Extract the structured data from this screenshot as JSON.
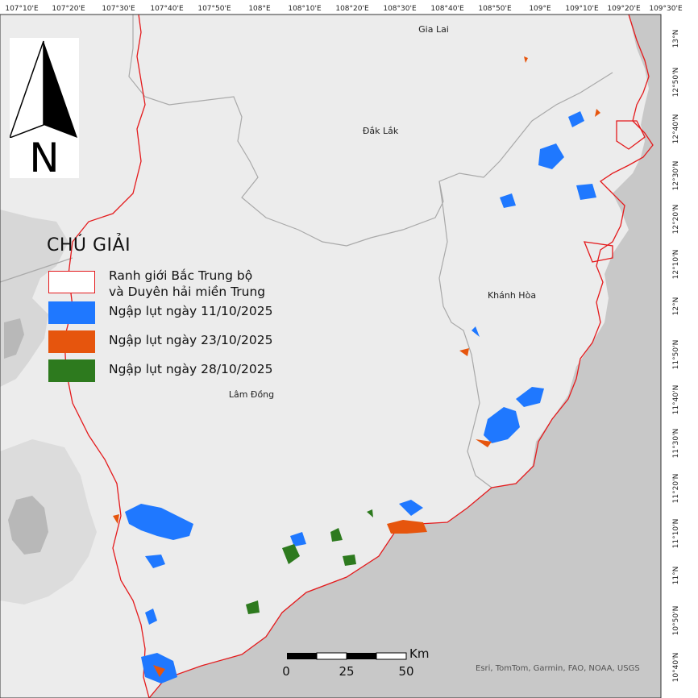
{
  "graticule": {
    "longitudes": [
      "107°10'E",
      "107°20'E",
      "107°30'E",
      "107°40'E",
      "107°50'E",
      "108°E",
      "108°10'E",
      "108°20'E",
      "108°30'E",
      "108°40'E",
      "108°50'E",
      "109°E",
      "109°10'E",
      "109°20'E",
      "109°30'E"
    ],
    "latitudes": [
      "13°N",
      "12°50'N",
      "12°40'N",
      "12°30'N",
      "12°20'N",
      "12°10'N",
      "12°N",
      "11°50'N",
      "11°40'N",
      "11°30'N",
      "11°20'N",
      "11°10'N",
      "11°N",
      "10°50'N",
      "10°40'N"
    ]
  },
  "places": {
    "gia_lai": "Gia Lai",
    "dak_lak": "Đắk Lắk",
    "khanh_hoa": "Khánh Hòa",
    "lam_dong": "Lâm Đồng"
  },
  "north_arrow": {
    "letter": "N"
  },
  "legend": {
    "title": "CHÚ GIẢI",
    "items": [
      {
        "label_line1": "Ranh giới Bắc Trung bộ",
        "label_line2": "và Duyên hải miền Trung",
        "color": "#e41a1c"
      },
      {
        "label_line1": "Ngập lụt ngày 11/10/2025",
        "color": "#1f78ff"
      },
      {
        "label_line1": "Ngập lụt ngày 23/10/2025",
        "color": "#e6550d"
      },
      {
        "label_line1": "Ngập lụt ngày 28/10/2025",
        "color": "#2d7a1e"
      }
    ]
  },
  "scalebar": {
    "ticks": [
      "0",
      "25",
      "50"
    ],
    "unit": "Km"
  },
  "credits": "Esri, TomTom, Garmin, FAO, NOAA, USGS",
  "colors": {
    "land": "#ececec",
    "sea": "#c9c9c9",
    "boundary": "#e41a1c",
    "flood_1110": "#1f78ff",
    "flood_2310": "#e6550d",
    "flood_2810": "#2d7a1e"
  }
}
